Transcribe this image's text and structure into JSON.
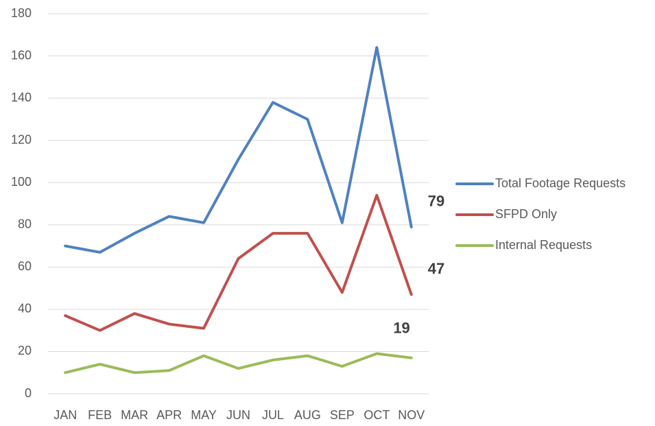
{
  "chart_data": {
    "type": "line",
    "categories": [
      "JAN",
      "FEB",
      "MAR",
      "APR",
      "MAY",
      "JUN",
      "JUL",
      "AUG",
      "SEP",
      "OCT",
      "NOV"
    ],
    "series": [
      {
        "name": "Total Footage Requests",
        "color": "#4f81bd",
        "values": [
          70,
          67,
          76,
          84,
          81,
          111,
          138,
          130,
          81,
          164,
          79
        ],
        "value_labels": [
          null,
          null,
          null,
          null,
          null,
          null,
          null,
          null,
          null,
          null,
          "79"
        ]
      },
      {
        "name": "SFPD Only",
        "color": "#c0504d",
        "values": [
          37,
          30,
          38,
          33,
          31,
          64,
          76,
          76,
          48,
          94,
          47
        ],
        "value_labels": [
          null,
          null,
          null,
          null,
          null,
          null,
          null,
          null,
          null,
          null,
          "47"
        ]
      },
      {
        "name": "Internal Requests",
        "color": "#9bbb59",
        "values": [
          10,
          14,
          10,
          11,
          18,
          12,
          16,
          18,
          13,
          19,
          17
        ],
        "value_labels": [
          null,
          null,
          null,
          null,
          null,
          null,
          null,
          null,
          null,
          "19",
          null
        ]
      }
    ],
    "ylim": [
      0,
      180
    ],
    "yticks": [
      0,
      20,
      40,
      60,
      80,
      100,
      120,
      140,
      160,
      180
    ],
    "grid": true,
    "legend": "right"
  }
}
